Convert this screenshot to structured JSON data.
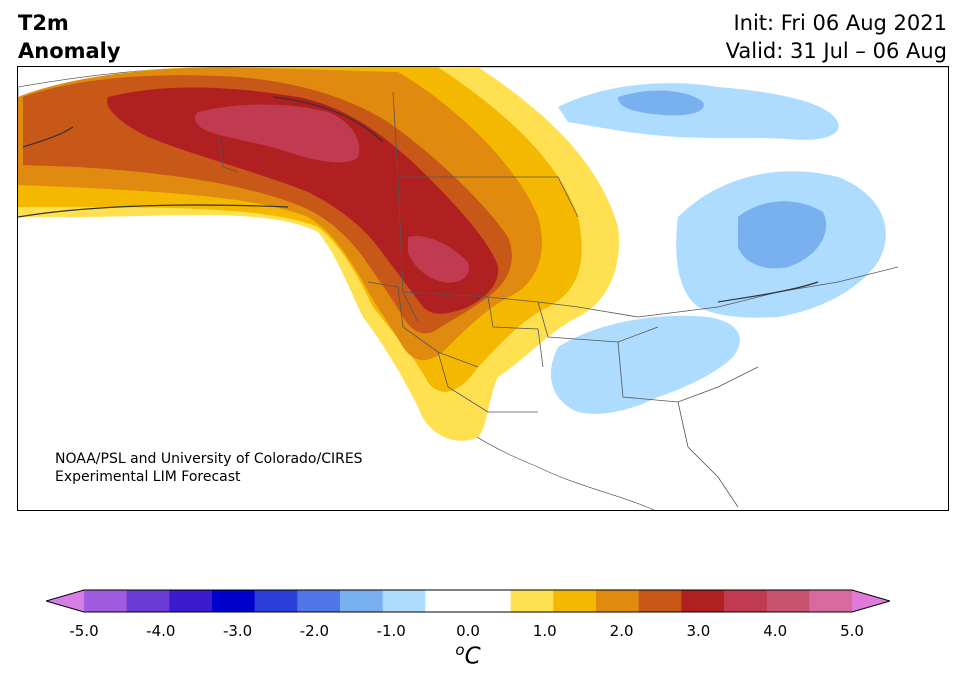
{
  "title": {
    "line1": "T2m",
    "line2": "Anomaly"
  },
  "dates": {
    "init": "Init: Fri 06 Aug 2021",
    "valid": "Valid: 31 Jul – 06 Aug"
  },
  "credit": {
    "line1": "NOAA/PSL and University of Colorado/CIRES",
    "line2": "Experimental LIM Forecast"
  },
  "colorbar": {
    "ticks": [
      "-5.0",
      "-4.0",
      "-3.0",
      "-2.0",
      "-1.0",
      "0.0",
      "1.0",
      "2.0",
      "3.0",
      "4.0",
      "5.0"
    ],
    "tick_values": [
      -5,
      -4,
      -3,
      -2,
      -1,
      0,
      1,
      2,
      3,
      4,
      5
    ],
    "range": [
      -5.0,
      5.0
    ],
    "step": 0.5,
    "unit_sup": "o",
    "unit": "C",
    "extend": "both",
    "colors": [
      "#d67de8",
      "#a05ce0",
      "#6a3bd6",
      "#3a1bd0",
      "#0000cc",
      "#2a3fd8",
      "#4f76e6",
      "#78b0f0",
      "#aedcff",
      "#ffffff",
      "#ffffff",
      "#ffe050",
      "#f5b800",
      "#e08a10",
      "#c85818",
      "#b02020",
      "#c03a50",
      "#c85270",
      "#d86aa0",
      "#e07ad8"
    ]
  }
}
